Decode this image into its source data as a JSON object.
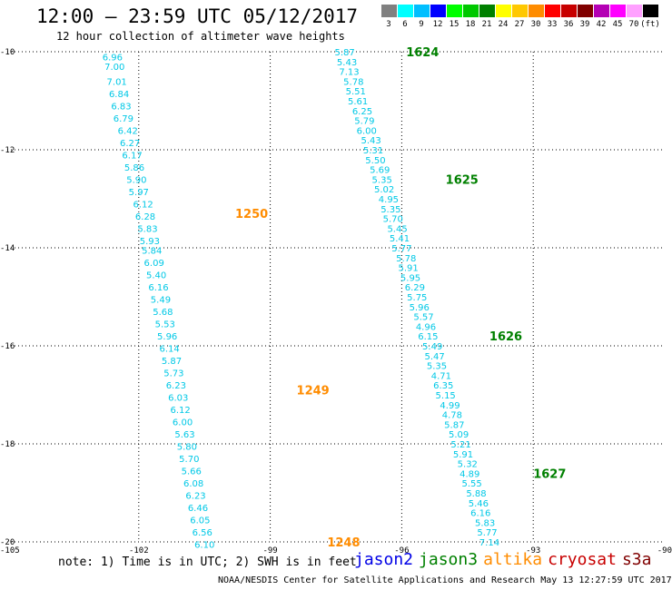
{
  "header": {
    "title": "12:00 – 23:59 UTC 05/12/2017",
    "subtitle": "12 hour collection of altimeter wave heights"
  },
  "scale": {
    "labels": [
      "3",
      "6",
      "9",
      "12",
      "15",
      "18",
      "21",
      "24",
      "27",
      "30",
      "33",
      "36",
      "39",
      "42",
      "45",
      "70",
      "(ft)"
    ],
    "colors": [
      "#808080",
      "#00ffff",
      "#00bfff",
      "#0000ff",
      "#00ff00",
      "#00c800",
      "#008000",
      "#ffff00",
      "#ffc800",
      "#ff8c00",
      "#ff0000",
      "#c80000",
      "#800000",
      "#b400b4",
      "#ff00ff",
      "#ffa0ff",
      "#000000"
    ]
  },
  "chart_data": {
    "type": "scatter",
    "xlim": [
      -105,
      -90
    ],
    "ylim": [
      -20,
      -10
    ],
    "x_ticks": [
      -105,
      -102,
      -99,
      -96,
      -93,
      -90
    ],
    "y_ticks": [
      -10,
      -12,
      -14,
      -16,
      -18,
      -20
    ],
    "grid": true,
    "value_color": "#00c8e6",
    "tracks": [
      {
        "satellite": "altika",
        "color": "#ff8c00",
        "labels": [
          {
            "text": "1250",
            "x": -99.8,
            "y": -13.3
          },
          {
            "text": "1249",
            "x": -98.4,
            "y": -16.9
          },
          {
            "text": "1248",
            "x": -97.7,
            "y": -20.0
          }
        ],
        "points": [
          {
            "x": -102.6,
            "y": -10.1,
            "swh": "6.96"
          },
          {
            "x": -102.55,
            "y": -10.3,
            "swh": "7.00"
          },
          {
            "x": -102.5,
            "y": -10.6,
            "swh": "7.01"
          },
          {
            "x": -102.45,
            "y": -10.85,
            "swh": "6.84"
          },
          {
            "x": -102.4,
            "y": -11.1,
            "swh": "6.83"
          },
          {
            "x": -102.35,
            "y": -11.35,
            "swh": "6.79"
          },
          {
            "x": -102.25,
            "y": -11.6,
            "swh": "6.42"
          },
          {
            "x": -102.2,
            "y": -11.85,
            "swh": "6.27"
          },
          {
            "x": -102.15,
            "y": -12.1,
            "swh": "6.17"
          },
          {
            "x": -102.1,
            "y": -12.35,
            "swh": "5.86"
          },
          {
            "x": -102.05,
            "y": -12.6,
            "swh": "5.90"
          },
          {
            "x": -102.0,
            "y": -12.85,
            "swh": "5.97"
          },
          {
            "x": -101.9,
            "y": -13.1,
            "swh": "6.12"
          },
          {
            "x": -101.85,
            "y": -13.35,
            "swh": "6.28"
          },
          {
            "x": -101.8,
            "y": -13.6,
            "swh": "5.83"
          },
          {
            "x": -101.75,
            "y": -13.85,
            "swh": "5.93"
          },
          {
            "x": -101.7,
            "y": -14.05,
            "swh": "5.84"
          },
          {
            "x": -101.65,
            "y": -14.3,
            "swh": "6.09"
          },
          {
            "x": -101.6,
            "y": -14.55,
            "swh": "5.40"
          },
          {
            "x": -101.55,
            "y": -14.8,
            "swh": "6.16"
          },
          {
            "x": -101.5,
            "y": -15.05,
            "swh": "5.49"
          },
          {
            "x": -101.45,
            "y": -15.3,
            "swh": "5.68"
          },
          {
            "x": -101.4,
            "y": -15.55,
            "swh": "5.53"
          },
          {
            "x": -101.35,
            "y": -15.8,
            "swh": "5.96"
          },
          {
            "x": -101.3,
            "y": -16.05,
            "swh": "6.14"
          },
          {
            "x": -101.25,
            "y": -16.3,
            "swh": "5.87"
          },
          {
            "x": -101.2,
            "y": -16.55,
            "swh": "5.73"
          },
          {
            "x": -101.15,
            "y": -16.8,
            "swh": "6.23"
          },
          {
            "x": -101.1,
            "y": -17.05,
            "swh": "6.03"
          },
          {
            "x": -101.05,
            "y": -17.3,
            "swh": "6.12"
          },
          {
            "x": -101.0,
            "y": -17.55,
            "swh": "6.00"
          },
          {
            "x": -100.95,
            "y": -17.8,
            "swh": "5.63"
          },
          {
            "x": -100.9,
            "y": -18.05,
            "swh": "5.80"
          },
          {
            "x": -100.85,
            "y": -18.3,
            "swh": "5.70"
          },
          {
            "x": -100.8,
            "y": -18.55,
            "swh": "5.66"
          },
          {
            "x": -100.75,
            "y": -18.8,
            "swh": "6.08"
          },
          {
            "x": -100.7,
            "y": -19.05,
            "swh": "6.23"
          },
          {
            "x": -100.65,
            "y": -19.3,
            "swh": "6.46"
          },
          {
            "x": -100.6,
            "y": -19.55,
            "swh": "6.05"
          },
          {
            "x": -100.55,
            "y": -19.8,
            "swh": "6.56"
          },
          {
            "x": -100.5,
            "y": -20.05,
            "swh": "6.10"
          }
        ]
      },
      {
        "satellite": "jason3",
        "color": "#008000",
        "labels": [
          {
            "text": "1624",
            "x": -95.9,
            "y": -10.0
          },
          {
            "text": "1625",
            "x": -95.0,
            "y": -12.6
          },
          {
            "text": "1626",
            "x": -94.0,
            "y": -15.8
          },
          {
            "text": "1627",
            "x": -93.0,
            "y": -18.6
          }
        ],
        "points": [
          {
            "x": -97.3,
            "y": -10.0,
            "swh": "5.87"
          },
          {
            "x": -97.25,
            "y": -10.2,
            "swh": "5.43"
          },
          {
            "x": -97.2,
            "y": -10.4,
            "swh": "7.13"
          },
          {
            "x": -97.1,
            "y": -10.6,
            "swh": "5.78"
          },
          {
            "x": -97.05,
            "y": -10.8,
            "swh": "5.51"
          },
          {
            "x": -97.0,
            "y": -11.0,
            "swh": "5.61"
          },
          {
            "x": -96.9,
            "y": -11.2,
            "swh": "6.25"
          },
          {
            "x": -96.85,
            "y": -11.4,
            "swh": "5.79"
          },
          {
            "x": -96.8,
            "y": -11.6,
            "swh": "6.00"
          },
          {
            "x": -96.7,
            "y": -11.8,
            "swh": "5.43"
          },
          {
            "x": -96.65,
            "y": -12.0,
            "swh": "5.31"
          },
          {
            "x": -96.6,
            "y": -12.2,
            "swh": "5.50"
          },
          {
            "x": -96.5,
            "y": -12.4,
            "swh": "5.69"
          },
          {
            "x": -96.45,
            "y": -12.6,
            "swh": "5.35"
          },
          {
            "x": -96.4,
            "y": -12.8,
            "swh": "5.02"
          },
          {
            "x": -96.3,
            "y": -13.0,
            "swh": "4.95"
          },
          {
            "x": -96.25,
            "y": -13.2,
            "swh": "5.35"
          },
          {
            "x": -96.2,
            "y": -13.4,
            "swh": "5.70"
          },
          {
            "x": -96.1,
            "y": -13.6,
            "swh": "5.45"
          },
          {
            "x": -96.05,
            "y": -13.8,
            "swh": "5.41"
          },
          {
            "x": -96.0,
            "y": -14.0,
            "swh": "5.77"
          },
          {
            "x": -95.9,
            "y": -14.2,
            "swh": "5.78"
          },
          {
            "x": -95.85,
            "y": -14.4,
            "swh": "5.91"
          },
          {
            "x": -95.8,
            "y": -14.6,
            "swh": "5.95"
          },
          {
            "x": -95.7,
            "y": -14.8,
            "swh": "6.29"
          },
          {
            "x": -95.65,
            "y": -15.0,
            "swh": "5.75"
          },
          {
            "x": -95.6,
            "y": -15.2,
            "swh": "5.96"
          },
          {
            "x": -95.5,
            "y": -15.4,
            "swh": "5.57"
          },
          {
            "x": -95.45,
            "y": -15.6,
            "swh": "4.96"
          },
          {
            "x": -95.4,
            "y": -15.8,
            "swh": "6.15"
          },
          {
            "x": -95.3,
            "y": -16.0,
            "swh": "5.49"
          },
          {
            "x": -95.25,
            "y": -16.2,
            "swh": "5.47"
          },
          {
            "x": -95.2,
            "y": -16.4,
            "swh": "5.35"
          },
          {
            "x": -95.1,
            "y": -16.6,
            "swh": "4.71"
          },
          {
            "x": -95.05,
            "y": -16.8,
            "swh": "6.35"
          },
          {
            "x": -95.0,
            "y": -17.0,
            "swh": "5.15"
          },
          {
            "x": -94.9,
            "y": -17.2,
            "swh": "4.99"
          },
          {
            "x": -94.85,
            "y": -17.4,
            "swh": "4.78"
          },
          {
            "x": -94.8,
            "y": -17.6,
            "swh": "5.87"
          },
          {
            "x": -94.7,
            "y": -17.8,
            "swh": "5.09"
          },
          {
            "x": -94.65,
            "y": -18.0,
            "swh": "5.21"
          },
          {
            "x": -94.6,
            "y": -18.2,
            "swh": "5.91"
          },
          {
            "x": -94.5,
            "y": -18.4,
            "swh": "5.32"
          },
          {
            "x": -94.45,
            "y": -18.6,
            "swh": "4.89"
          },
          {
            "x": -94.4,
            "y": -18.8,
            "swh": "5.55"
          },
          {
            "x": -94.3,
            "y": -19.0,
            "swh": "5.88"
          },
          {
            "x": -94.25,
            "y": -19.2,
            "swh": "5.46"
          },
          {
            "x": -94.2,
            "y": -19.4,
            "swh": "6.16"
          },
          {
            "x": -94.1,
            "y": -19.6,
            "swh": "5.83"
          },
          {
            "x": -94.05,
            "y": -19.8,
            "swh": "5.77"
          },
          {
            "x": -94.0,
            "y": -20.0,
            "swh": "7.14"
          }
        ]
      }
    ]
  },
  "note": "note: 1) Time is in UTC; 2) SWH is in feet",
  "sat_legend": [
    {
      "name": "jason2",
      "color": "#0000e6"
    },
    {
      "name": "jason3",
      "color": "#008000"
    },
    {
      "name": "altika",
      "color": "#ff8c00"
    },
    {
      "name": "cryosat",
      "color": "#c80000"
    },
    {
      "name": "s3a",
      "color": "#800000"
    }
  ],
  "credit": "NOAA/NESDIS Center for Satellite Applications and Research    May 13 12:27:59 UTC 2017"
}
